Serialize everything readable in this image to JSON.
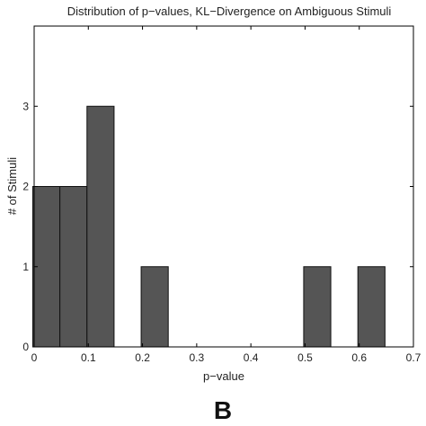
{
  "chart_data": {
    "type": "bar",
    "title": "Distribution of p−values, KL−Divergence on Ambiguous Stimuli",
    "xlabel": "p−value",
    "ylabel": "# of Stimuli",
    "xlim": [
      0,
      0.7
    ],
    "ylim": [
      0,
      4
    ],
    "xticks": [
      0,
      0.1,
      0.2,
      0.3,
      0.4,
      0.5,
      0.6,
      0.7
    ],
    "xtick_labels": [
      "0",
      "0.1",
      "0.2",
      "0.3",
      "0.4",
      "0.5",
      "0.6",
      "0.7"
    ],
    "yticks": [
      0,
      1,
      2,
      3
    ],
    "ytick_labels": [
      "0",
      "1",
      "2",
      "3"
    ],
    "bin_width": 0.05,
    "bins": [
      {
        "x": 0.0225,
        "value": 2
      },
      {
        "x": 0.0725,
        "value": 2
      },
      {
        "x": 0.1225,
        "value": 3
      },
      {
        "x": 0.2225,
        "value": 1
      },
      {
        "x": 0.5225,
        "value": 1
      },
      {
        "x": 0.6225,
        "value": 1
      }
    ],
    "bar_color": "#555555",
    "grid": false
  },
  "panel_label": "B"
}
